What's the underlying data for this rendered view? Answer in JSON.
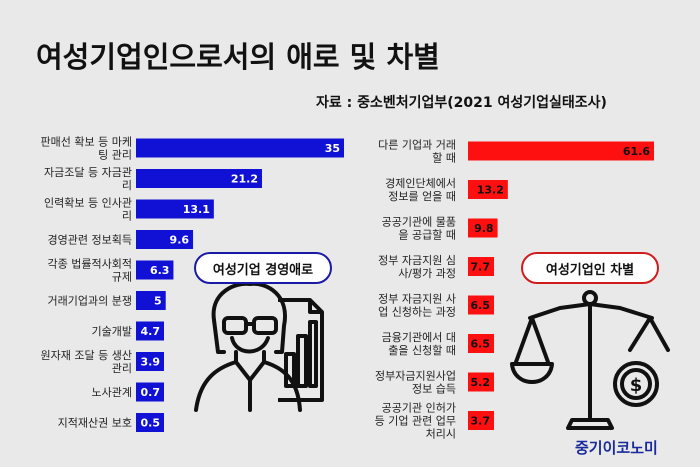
{
  "title": "여성기업인으로서의 애로 및 차별",
  "source": "자료 : 중소벤처기업부(2021 여성기업실태조사)",
  "badge_left": "여성기업 경영애로",
  "badge_right": "여성기업인 차별",
  "brand": "중기이코노미",
  "colors": {
    "left_bar": "#1111d6",
    "right_bar": "#ff1010",
    "background": "#e9e9e9"
  },
  "icons": [
    "businesswoman-icon",
    "document-chart-icon",
    "balance-scale-icon",
    "dollar-coin-icon"
  ],
  "chart_data": [
    {
      "type": "bar",
      "orientation": "horizontal",
      "label": "여성기업 경영애로",
      "categories": [
        [
          "판매선 확보 등 마케",
          "팅 관리"
        ],
        [
          "자금조달 등 자금관",
          "리"
        ],
        [
          "인력확보 등 인사관",
          "리"
        ],
        [
          "경영관련 정보획득"
        ],
        [
          "각종 법률적사회적",
          "규제"
        ],
        [
          "거래기업과의 분쟁"
        ],
        [
          "기술개발"
        ],
        [
          "원자재 조달 등 생산",
          "관리"
        ],
        [
          "노사관계"
        ],
        [
          "지적재산권 보호"
        ]
      ],
      "values": [
        35,
        21.2,
        13.1,
        9.6,
        6.3,
        5,
        4.7,
        3.9,
        0.7,
        0.5
      ],
      "value_labels": [
        "35",
        "21.2",
        "13.1",
        "9.6",
        "6.3",
        "5",
        "4.7",
        "3.9",
        "0.7",
        "0.5"
      ]
    },
    {
      "type": "bar",
      "orientation": "horizontal",
      "label": "여성기업인 차별",
      "categories": [
        [
          "다른 기업과 거래",
          "할 때"
        ],
        [
          "경제인단체에서",
          "정보를 얻을 때"
        ],
        [
          "공공기관에 물품",
          "을 공급할 때"
        ],
        [
          "정부 자금지원 심",
          "사/평가 과정"
        ],
        [
          "정부 자금지원 사",
          "업 신청하는 과정"
        ],
        [
          "금융기관에서 대",
          "출을 신청할 때"
        ],
        [
          "정부자금지원사업",
          "정보 습득"
        ],
        [
          "공공기관 인허가",
          "등 기업 관련 업무",
          "처리시"
        ]
      ],
      "values": [
        61.6,
        13.2,
        9.8,
        7.7,
        6.5,
        6.5,
        5.2,
        3.7
      ],
      "value_labels": [
        "61.6",
        "13.2",
        "9.8",
        "7.7",
        "6.5",
        "6.5",
        "5.2",
        "3.7"
      ]
    }
  ]
}
